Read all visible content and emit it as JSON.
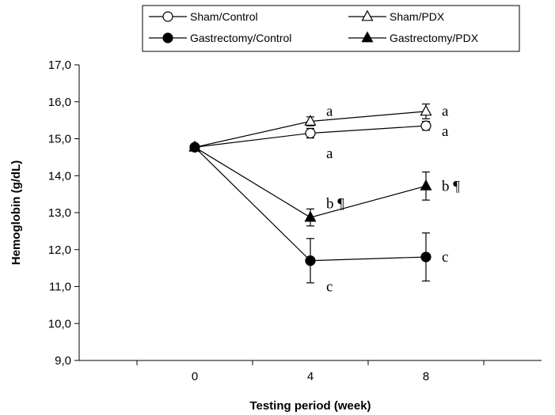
{
  "chart_data": {
    "type": "line",
    "xlabel": "Testing period (week)",
    "ylabel": "Hemoglobin (g/dL)",
    "x": [
      0,
      4,
      8
    ],
    "x_tick_labels": [
      "0",
      "4",
      "8"
    ],
    "xlim": [
      -4,
      12
    ],
    "ylim": [
      9,
      17
    ],
    "y_ticks": [
      9,
      10,
      11,
      12,
      13,
      14,
      15,
      16,
      17
    ],
    "y_tick_labels": [
      "9,0",
      "10,0",
      "11,0",
      "12,0",
      "13,0",
      "14,0",
      "15,0",
      "16,0",
      "17,0"
    ],
    "legend_position": "top",
    "series": [
      {
        "name": "Sham/Control",
        "marker": "circle-open",
        "values": [
          14.77,
          15.15,
          15.35
        ],
        "errors": [
          0.06,
          0.13,
          0.12
        ]
      },
      {
        "name": "Sham/PDX",
        "marker": "triangle-open",
        "values": [
          14.77,
          15.47,
          15.74
        ],
        "errors": [
          0.06,
          0.12,
          0.2
        ]
      },
      {
        "name": "Gastrectomy/Control",
        "marker": "circle-filled",
        "values": [
          14.77,
          11.7,
          11.8
        ],
        "errors": [
          0.06,
          0.6,
          0.65
        ]
      },
      {
        "name": "Gastrectomy/PDX",
        "marker": "triangle-filled",
        "values": [
          14.77,
          12.87,
          13.72
        ],
        "errors": [
          0.06,
          0.23,
          0.38
        ]
      }
    ],
    "annotations": [
      {
        "text": "a",
        "x": 4,
        "y": 15.75
      },
      {
        "text": "a",
        "x": 4,
        "y": 14.6
      },
      {
        "text": "b ¶",
        "x": 4,
        "y": 13.25
      },
      {
        "text": "c",
        "x": 4,
        "y": 11.0
      },
      {
        "text": "a",
        "x": 8,
        "y": 15.75
      },
      {
        "text": "a",
        "x": 8,
        "y": 15.2
      },
      {
        "text": "b ¶",
        "x": 8,
        "y": 13.72
      },
      {
        "text": "c",
        "x": 8,
        "y": 11.8
      }
    ]
  }
}
